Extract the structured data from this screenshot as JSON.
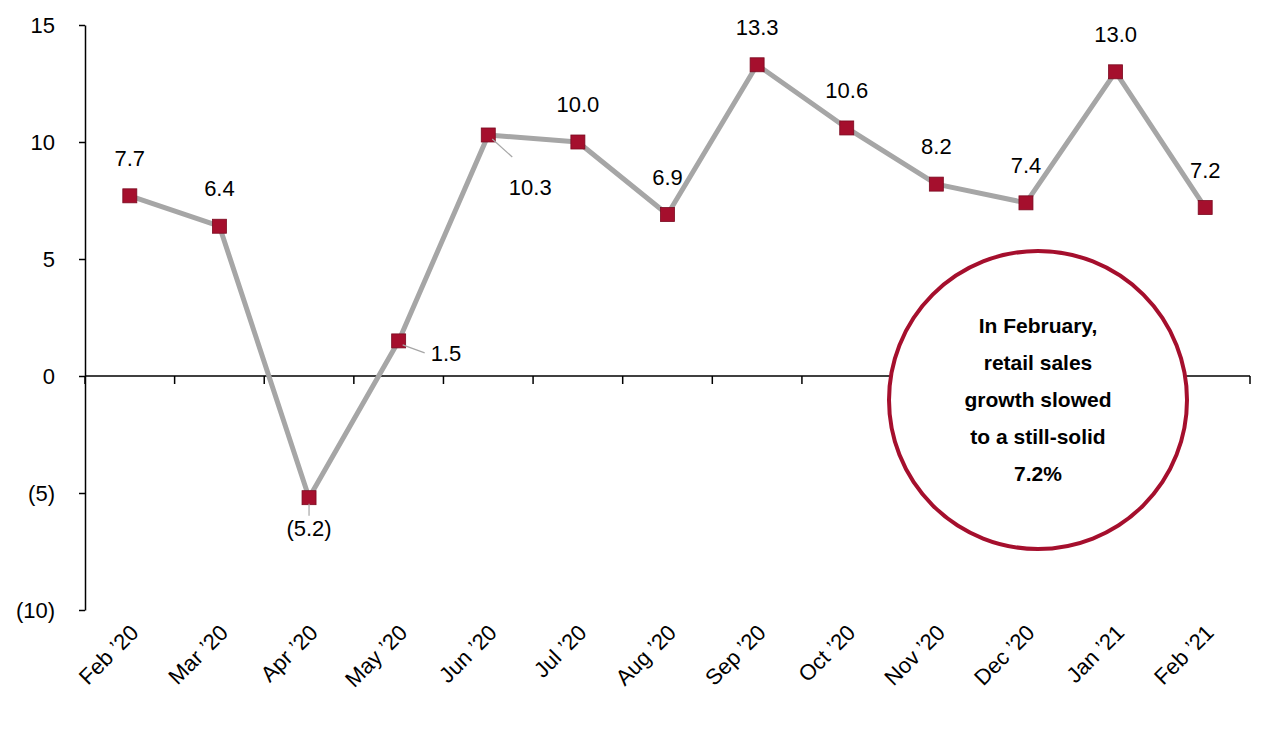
{
  "chart_data": {
    "type": "line",
    "categories": [
      "Feb ’20",
      "Mar ’20",
      "Apr ’20",
      "May ’20",
      "Jun ’20",
      "Jul ’20",
      "Aug ’20",
      "Sep ’20",
      "Oct ’20",
      "Nov ’20",
      "Dec ’20",
      "Jan ’21",
      "Feb ’21"
    ],
    "values": [
      7.7,
      6.4,
      -5.2,
      1.5,
      10.3,
      10.0,
      6.9,
      13.3,
      10.6,
      8.2,
      7.4,
      13.0,
      7.2
    ],
    "value_labels": [
      "7.7",
      "6.4",
      "(5.2)",
      "1.5",
      "10.3",
      "10.0",
      "6.9",
      "13.3",
      "10.6",
      "8.2",
      "7.4",
      "13.0",
      "7.2"
    ],
    "color": "#A6A6A6",
    "marker": "square",
    "data_labels": true,
    "ylim": [
      -10,
      15
    ],
    "yticks": [
      {
        "value": -10,
        "label": "(10)"
      },
      {
        "value": -5,
        "label": "(5)"
      },
      0,
      5,
      10,
      15
    ],
    "grid": false,
    "annotation": [
      "In February,",
      "retail sales",
      "growth slowed",
      "to a still-solid",
      "7.2%"
    ]
  }
}
